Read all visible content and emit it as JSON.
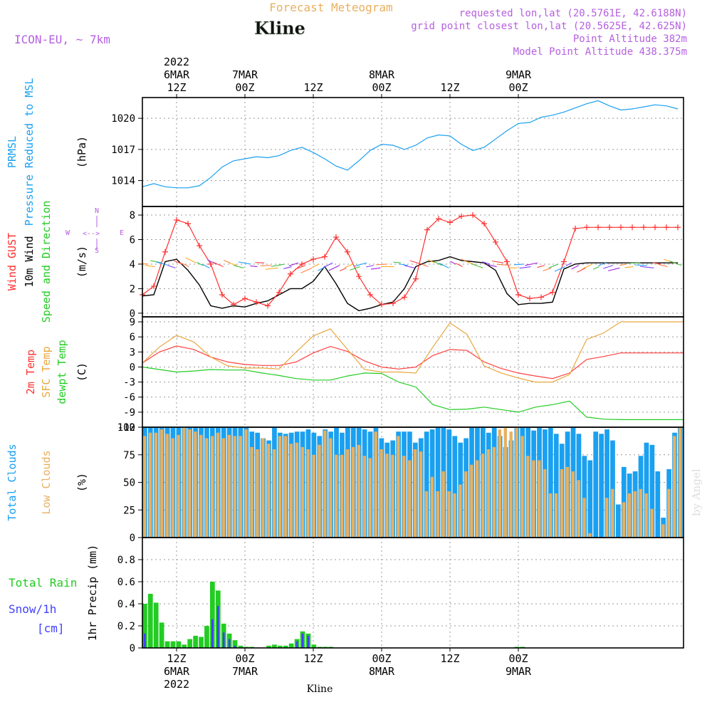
{
  "header": {
    "title": "Forecast Meteogram",
    "location": "Kline",
    "model": "ICON-EU, ~ 7km",
    "requested": "requested lon,lat (20.5761E, 42.6188N)",
    "gridpoint": "grid point closest lon,lat (20.5625E, 42.625N)",
    "point_alt": "Point Altitude 382m",
    "model_alt": "Model Point Altitude 438.375m",
    "credit": "by Angel",
    "footer_location": "Kline"
  },
  "time_axis": {
    "hour_range": [
      0,
      95
    ],
    "hour_offset_from_0Z_6MAR": 6,
    "ticks": [
      {
        "h": 6,
        "label": "12Z",
        "date": "6MAR",
        "year": "2022"
      },
      {
        "h": 18,
        "label": "00Z",
        "date": "7MAR",
        "year": ""
      },
      {
        "h": 30,
        "label": "12Z",
        "date": "",
        "year": ""
      },
      {
        "h": 42,
        "label": "00Z",
        "date": "8MAR",
        "year": ""
      },
      {
        "h": 54,
        "label": "12Z",
        "date": "",
        "year": ""
      },
      {
        "h": 66,
        "label": "00Z",
        "date": "9MAR",
        "year": ""
      }
    ]
  },
  "colors": {
    "pressure": "#1aa0f0",
    "gust": "#ff3030",
    "wind": "#000000",
    "temp2m": "#ff4040",
    "sfc": "#e8a840",
    "dew": "#22cc22",
    "total_clouds": "#1aa0f0",
    "low_clouds": "#e8b060",
    "rain": "#22cc22",
    "snow": "#4040ff",
    "title": "#e8b060",
    "info": "#b660e0"
  },
  "chart_data": [
    {
      "id": "pressure",
      "type": "line",
      "title": "PRMSL Pressure Reduced to MSL",
      "label_lines": [
        "PRMSL",
        "Pressure Reduced to MSL"
      ],
      "ylabel": "(hPa)",
      "ylim": [
        1011.5,
        1022.0
      ],
      "yticks": [
        1014,
        1017,
        1020
      ],
      "series": [
        {
          "name": "PRMSL",
          "hours": [
            0,
            2,
            4,
            6,
            8,
            10,
            12,
            14,
            16,
            18,
            20,
            22,
            24,
            26,
            28,
            30,
            32,
            34,
            36,
            38,
            40,
            42,
            44,
            46,
            48,
            50,
            52,
            54,
            56,
            58,
            60,
            62,
            64,
            66,
            68,
            70,
            72,
            74,
            76,
            78,
            80,
            82,
            84,
            86,
            88,
            90,
            92,
            94
          ],
          "values": [
            1013.4,
            1013.7,
            1013.4,
            1013.3,
            1013.3,
            1013.5,
            1014.3,
            1015.3,
            1015.9,
            1016.1,
            1016.3,
            1016.2,
            1016.4,
            1016.9,
            1017.2,
            1016.7,
            1016.1,
            1015.4,
            1015.0,
            1015.9,
            1016.9,
            1017.5,
            1017.4,
            1017.0,
            1017.4,
            1018.1,
            1018.4,
            1018.3,
            1017.5,
            1016.9,
            1017.2,
            1018.0,
            1018.8,
            1019.5,
            1019.6,
            1020.1,
            1020.3,
            1020.6,
            1021.0,
            1021.4,
            1021.7,
            1021.2,
            1020.8,
            1020.9,
            1021.1,
            1021.3,
            1021.2,
            1020.9
          ]
        }
      ]
    },
    {
      "id": "wind",
      "type": "line",
      "title": "Wind GUST 10m Wind Speed and Direction",
      "label_lines": [
        "Wind GUST",
        "10m Wind",
        "Speed and Direction"
      ],
      "ylabel": "(m/s)",
      "compass": [
        "N",
        "W",
        "E",
        "S"
      ],
      "ylim": [
        -0.3,
        8.7
      ],
      "yticks": [
        0,
        2,
        4,
        6,
        8
      ],
      "series": [
        {
          "name": "Wind GUST",
          "hours": [
            0,
            2,
            4,
            6,
            8,
            10,
            12,
            14,
            16,
            18,
            20,
            22,
            24,
            26,
            28,
            30,
            32,
            34,
            36,
            38,
            40,
            42,
            44,
            46,
            48,
            50,
            52,
            54,
            56,
            58,
            60,
            62,
            64,
            66,
            68,
            70,
            72,
            74,
            76,
            78,
            80,
            82,
            84,
            86,
            88,
            90,
            92,
            94
          ],
          "values": [
            1.5,
            2.2,
            5.0,
            7.6,
            7.3,
            5.5,
            4.0,
            1.5,
            0.7,
            1.2,
            0.9,
            0.6,
            1.7,
            3.2,
            4.0,
            4.4,
            4.6,
            6.2,
            5.0,
            3.0,
            1.5,
            0.7,
            0.8,
            1.3,
            2.8,
            6.8,
            7.7,
            7.4,
            7.9,
            8.0,
            7.3,
            5.8,
            4.2,
            1.5,
            1.2,
            1.3,
            1.7,
            4.2,
            6.9,
            7.0,
            7.0,
            7.0,
            7.0,
            7.0,
            7.0,
            7.0,
            7.0,
            7.0
          ]
        },
        {
          "name": "10m Wind",
          "hours": [
            0,
            2,
            4,
            6,
            8,
            10,
            12,
            14,
            16,
            18,
            20,
            22,
            24,
            26,
            28,
            30,
            32,
            34,
            36,
            38,
            40,
            42,
            44,
            46,
            48,
            50,
            52,
            54,
            56,
            58,
            60,
            62,
            64,
            66,
            68,
            70,
            72,
            74,
            76,
            78,
            80,
            82,
            84,
            86,
            88,
            90,
            92,
            94
          ],
          "values": [
            1.4,
            1.5,
            4.2,
            4.4,
            3.5,
            2.3,
            0.6,
            0.4,
            0.6,
            0.5,
            0.8,
            1.0,
            1.5,
            2.0,
            2.0,
            2.6,
            3.8,
            2.4,
            0.8,
            0.2,
            0.4,
            0.7,
            0.9,
            2.0,
            3.8,
            4.2,
            4.3,
            4.6,
            4.3,
            4.2,
            4.1,
            3.5,
            1.6,
            0.7,
            0.8,
            0.8,
            0.9,
            3.6,
            4.0,
            4.1,
            4.1,
            4.1,
            4.1,
            4.1,
            4.1,
            4.1,
            4.1,
            4.1
          ]
        }
      ]
    },
    {
      "id": "temperature",
      "type": "line",
      "title": "2m Temp, SFC Temp, dewpt Temp",
      "label_lines": [
        "2m Temp",
        "SFC Temp",
        "dewpt Temp"
      ],
      "ylabel": "(C)",
      "ylim": [
        -12,
        10
      ],
      "yticks": [
        9,
        6,
        3,
        0,
        -3,
        -6,
        -9,
        -12
      ],
      "series": [
        {
          "name": "2m Temp",
          "hours": [
            0,
            3,
            6,
            9,
            12,
            15,
            18,
            21,
            24,
            27,
            30,
            33,
            36,
            39,
            42,
            45,
            48,
            51,
            54,
            57,
            60,
            63,
            66,
            69,
            72,
            75,
            78,
            81,
            84,
            87,
            90,
            93,
            95
          ],
          "values": [
            0.8,
            3.0,
            4.2,
            3.5,
            2.0,
            1.0,
            0.5,
            0.3,
            0.3,
            1.0,
            2.8,
            4.1,
            3.1,
            1.2,
            0.0,
            -0.4,
            0.0,
            2.3,
            3.5,
            3.3,
            1.0,
            -0.3,
            -1.2,
            -1.8,
            -2.3,
            -1.2,
            1.5,
            2.1,
            2.8,
            2.8,
            2.8,
            2.8,
            2.8
          ]
        },
        {
          "name": "SFC Temp",
          "hours": [
            0,
            3,
            6,
            9,
            12,
            15,
            18,
            21,
            24,
            27,
            30,
            33,
            36,
            39,
            42,
            45,
            48,
            51,
            54,
            57,
            60,
            63,
            66,
            69,
            72,
            75,
            78,
            81,
            84,
            87,
            90,
            93,
            95
          ],
          "values": [
            0.8,
            4.0,
            6.3,
            5.0,
            2.0,
            0.2,
            -0.2,
            -0.2,
            -0.4,
            3.0,
            6.2,
            7.6,
            3.5,
            -0.5,
            -1.0,
            -1.0,
            -1.2,
            4.0,
            8.8,
            6.5,
            0.2,
            -1.2,
            -2.2,
            -3.0,
            -3.0,
            -1.5,
            5.5,
            6.8,
            9.0,
            9.0,
            9.0,
            9.0,
            9.0
          ]
        },
        {
          "name": "dewpt Temp",
          "hours": [
            0,
            3,
            6,
            9,
            12,
            15,
            18,
            21,
            24,
            27,
            30,
            33,
            36,
            39,
            42,
            45,
            48,
            51,
            54,
            57,
            60,
            63,
            66,
            69,
            72,
            75,
            78,
            81,
            84,
            87,
            90,
            93,
            95
          ],
          "values": [
            0.0,
            -0.5,
            -1.0,
            -0.8,
            -0.5,
            -0.6,
            -0.6,
            -1.2,
            -1.7,
            -2.3,
            -2.6,
            -2.6,
            -1.8,
            -1.2,
            -1.3,
            -3.0,
            -4.0,
            -7.5,
            -8.5,
            -8.4,
            -8.0,
            -8.5,
            -9.0,
            -8.0,
            -7.5,
            -6.8,
            -10.0,
            -10.4,
            -10.5,
            -10.5,
            -10.5,
            -10.5,
            -10.5
          ]
        }
      ]
    },
    {
      "id": "clouds",
      "type": "bar",
      "title": "Total Clouds, Low Clouds",
      "label_lines": [
        "Total Clouds",
        "Low Clouds"
      ],
      "ylabel": "(%)",
      "ylim": [
        0,
        100
      ],
      "yticks": [
        0,
        25,
        50,
        75,
        100
      ],
      "series": [
        {
          "name": "Total Clouds",
          "values": [
            100,
            100,
            100,
            100,
            100,
            100,
            100,
            100,
            100,
            100,
            100,
            100,
            100,
            100,
            100,
            100,
            100,
            100,
            100,
            96,
            95,
            90,
            88,
            100,
            95,
            94,
            95,
            96,
            96,
            98,
            95,
            92,
            98,
            96,
            100,
            95,
            100,
            100,
            100,
            98,
            96,
            100,
            90,
            86,
            88,
            96,
            96,
            96,
            86,
            90,
            96,
            98,
            100,
            100,
            98,
            92,
            86,
            90,
            100,
            100,
            100,
            95,
            100,
            92,
            82,
            88,
            100,
            100,
            100,
            97,
            100,
            98,
            100,
            94,
            85,
            96,
            100,
            94,
            74,
            70,
            96,
            94,
            98,
            88,
            30,
            64,
            58,
            60,
            74,
            86,
            84,
            60,
            18,
            62,
            95,
            100
          ]
        },
        {
          "name": "Low Clouds",
          "values": [
            92,
            95,
            95,
            98,
            94,
            90,
            93,
            100,
            98,
            96,
            93,
            90,
            92,
            95,
            90,
            93,
            92,
            92,
            98,
            82,
            80,
            90,
            85,
            80,
            92,
            92,
            85,
            86,
            82,
            80,
            75,
            84,
            97,
            90,
            75,
            75,
            80,
            82,
            84,
            74,
            72,
            96,
            80,
            76,
            75,
            92,
            74,
            70,
            80,
            78,
            42,
            55,
            42,
            60,
            42,
            40,
            48,
            60,
            66,
            70,
            76,
            80,
            82,
            98,
            100,
            96,
            100,
            92,
            74,
            70,
            70,
            62,
            40,
            40,
            62,
            64,
            60,
            52,
            36,
            4,
            0,
            0,
            36,
            44,
            0,
            32,
            40,
            42,
            44,
            40,
            26,
            0,
            12,
            44,
            92,
            100
          ]
        }
      ]
    },
    {
      "id": "precip",
      "type": "bar",
      "title": "Total Rain, Snow/1h",
      "label_lines": [
        "Total   Rain",
        "Snow/1h",
        "[cm]"
      ],
      "ylabel": "1hr Precip (mm)",
      "ylim": [
        0,
        1.0
      ],
      "yticks": [
        0,
        0.2,
        0.4,
        0.6,
        0.8
      ],
      "series": [
        {
          "name": "Total Rain",
          "values": [
            0.4,
            0.49,
            0.41,
            0.23,
            0.06,
            0.06,
            0.06,
            0.03,
            0.08,
            0.11,
            0.1,
            0.2,
            0.6,
            0.52,
            0.22,
            0.13,
            0.07,
            0.02,
            0.01,
            0.01,
            0.0,
            0.0,
            0.02,
            0.03,
            0.02,
            0.02,
            0.04,
            0.08,
            0.15,
            0.13,
            0.03,
            0.01,
            0.01,
            0.01,
            0.0,
            0.0,
            0.0,
            0.0,
            0.0,
            0.0,
            0.0,
            0.0,
            0.0,
            0.0,
            0.0,
            0.0,
            0.0,
            0.0,
            0.0,
            0.0,
            0.0,
            0.0,
            0.0,
            0.0,
            0.0,
            0.0,
            0.0,
            0.0,
            0.0,
            0.0,
            0.0,
            0.0,
            0.0,
            0.0,
            0.0,
            0.0,
            0.01,
            0.01,
            0.0,
            0.0,
            0.0,
            0.0,
            0.0,
            0.0,
            0.0,
            0.0,
            0.0,
            0.0,
            0.0,
            0.0,
            0.0,
            0.0,
            0.0,
            0.0,
            0.0,
            0.0,
            0.0,
            0.0,
            0.0,
            0.0,
            0.0,
            0.0,
            0.0,
            0.0,
            0.0,
            0.0
          ]
        },
        {
          "name": "Snow/1h",
          "values": [
            0.13,
            0.0,
            0.0,
            0.0,
            0.0,
            0.0,
            0.0,
            0.0,
            0.0,
            0.0,
            0.0,
            0.0,
            0.26,
            0.38,
            0.14,
            0.08,
            0.02,
            0.0,
            0.0,
            0.0,
            0.0,
            0.0,
            0.0,
            0.0,
            0.0,
            0.0,
            0.0,
            0.06,
            0.13,
            0.11,
            0.0,
            0.0,
            0.0,
            0.0,
            0.0,
            0.0,
            0.0,
            0.0,
            0.0,
            0.0,
            0.0,
            0.0,
            0.0,
            0.0,
            0.0,
            0.0,
            0.0,
            0.0,
            0.0,
            0.0,
            0.0,
            0.0,
            0.0,
            0.0,
            0.0,
            0.0,
            0.0,
            0.0,
            0.0,
            0.0,
            0.0,
            0.0,
            0.0,
            0.0,
            0.0,
            0.0,
            0.0,
            0.0,
            0.0,
            0.0,
            0.0,
            0.0,
            0.0,
            0.0,
            0.0,
            0.0,
            0.0,
            0.0,
            0.0,
            0.0,
            0.0,
            0.0,
            0.0,
            0.0,
            0.0,
            0.0,
            0.0,
            0.0,
            0.0,
            0.0,
            0.0,
            0.0,
            0.0,
            0.0,
            0.0,
            0.0
          ]
        }
      ]
    }
  ]
}
